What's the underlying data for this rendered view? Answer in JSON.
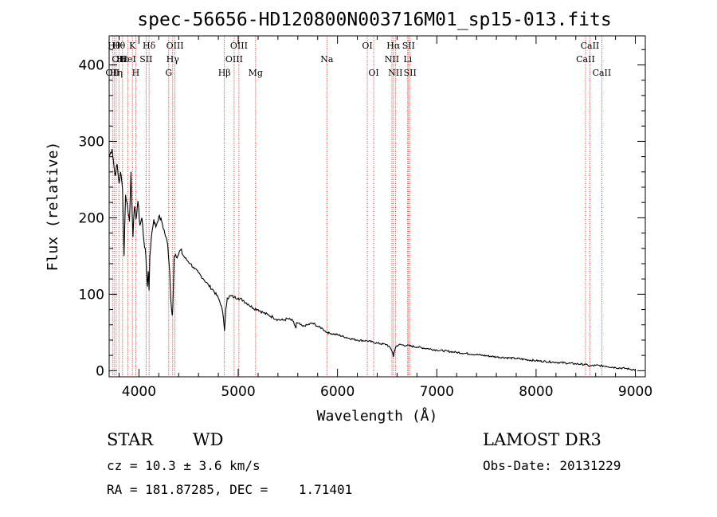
{
  "chart_data": {
    "type": "line",
    "title": "spec-56656-HD120800N003716M01_sp15-013.fits",
    "xlabel": "Wavelength (Å)",
    "ylabel": "Flux (relative)",
    "xlim": [
      3700,
      9100
    ],
    "ylim": [
      -8,
      438
    ],
    "x_ticks": [
      4000,
      5000,
      6000,
      7000,
      8000,
      9000
    ],
    "y_ticks": [
      0,
      100,
      200,
      300,
      400
    ],
    "series": [
      {
        "name": "flux",
        "x": [
          3700,
          3730,
          3760,
          3780,
          3800,
          3815,
          3835,
          3850,
          3865,
          3885,
          3905,
          3920,
          3940,
          3955,
          3970,
          3990,
          4010,
          4030,
          4050,
          4070,
          4085,
          4095,
          4102,
          4110,
          4125,
          4150,
          4170,
          4200,
          4230,
          4260,
          4290,
          4310,
          4320,
          4330,
          4336,
          4340,
          4345,
          4355,
          4370,
          4390,
          4420,
          4450,
          4480,
          4520,
          4560,
          4600,
          4650,
          4700,
          4750,
          4800,
          4830,
          4850,
          4860,
          4862,
          4868,
          4875,
          4890,
          4920,
          4960,
          5000,
          5050,
          5100,
          5150,
          5200,
          5250,
          5300,
          5350,
          5400,
          5450,
          5500,
          5550,
          5580,
          5582,
          5584,
          5600,
          5650,
          5700,
          5750,
          5800,
          5850,
          5890,
          5900,
          5920,
          6000,
          6100,
          6200,
          6300,
          6400,
          6500,
          6540,
          6555,
          6563,
          6570,
          6590,
          6620,
          6700,
          6800,
          6900,
          7000,
          7200,
          7400,
          7600,
          7800,
          8000,
          8200,
          8400,
          8500,
          8542,
          8600,
          8700,
          8800,
          8900,
          9000
        ],
        "values": [
          280,
          290,
          255,
          270,
          245,
          260,
          238,
          150,
          230,
          215,
          195,
          260,
          175,
          215,
          198,
          222,
          190,
          200,
          170,
          150,
          110,
          130,
          105,
          150,
          175,
          198,
          188,
          202,
          195,
          180,
          165,
          130,
          95,
          78,
          72,
          80,
          100,
          150,
          152,
          150,
          158,
          150,
          145,
          140,
          133,
          128,
          120,
          112,
          105,
          95,
          85,
          70,
          55,
          52,
          65,
          80,
          95,
          98,
          96,
          95,
          92,
          87,
          82,
          80,
          76,
          73,
          70,
          67,
          66,
          68,
          65,
          56,
          56,
          62,
          62,
          58,
          60,
          62,
          58,
          55,
          50,
          50,
          49,
          47,
          43,
          40,
          39,
          36,
          34,
          28,
          24,
          18,
          24,
          32,
          34,
          33,
          31,
          29,
          27,
          24,
          21,
          18,
          16,
          13,
          11,
          9,
          8,
          6,
          7,
          6,
          4,
          3,
          1
        ]
      }
    ],
    "lines": [
      {
        "wl": 3734,
        "labels": [
          {
            "row": 2,
            "text": "OII"
          }
        ]
      },
      {
        "wl": 3750,
        "labels": [
          {
            "row": 0,
            "text": "Hθ"
          }
        ]
      },
      {
        "wl": 3771,
        "labels": [
          {
            "row": 2,
            "text": "Hη"
          }
        ]
      },
      {
        "wl": 3798,
        "labels": [
          {
            "row": 0,
            "text": "Hθ"
          },
          {
            "row": 1,
            "text": "OII"
          }
        ]
      },
      {
        "wl": 3835,
        "labels": [
          {
            "row": 1,
            "text": "Hε"
          }
        ]
      },
      {
        "wl": 3889,
        "labels": [
          {
            "row": 1,
            "text": "HeI"
          }
        ]
      },
      {
        "wl": 3934,
        "labels": [
          {
            "row": 0,
            "text": "K"
          }
        ]
      },
      {
        "wl": 3968,
        "labels": [
          {
            "row": 2,
            "text": "H"
          }
        ]
      },
      {
        "wl": 4072,
        "labels": [
          {
            "row": 1,
            "text": "SII"
          }
        ]
      },
      {
        "wl": 4102,
        "labels": [
          {
            "row": 0,
            "text": "Hδ"
          }
        ]
      },
      {
        "wl": 4300,
        "labels": [
          {
            "row": 2,
            "text": "G"
          }
        ]
      },
      {
        "wl": 4340,
        "labels": [
          {
            "row": 1,
            "text": "Hγ"
          }
        ]
      },
      {
        "wl": 4363,
        "labels": [
          {
            "row": 0,
            "text": "OIII"
          }
        ]
      },
      {
        "wl": 4861,
        "labels": [
          {
            "row": 2,
            "text": "Hβ"
          }
        ]
      },
      {
        "wl": 4959,
        "labels": [
          {
            "row": 1,
            "text": "OIII"
          }
        ]
      },
      {
        "wl": 5007,
        "labels": [
          {
            "row": 0,
            "text": "OIII"
          }
        ]
      },
      {
        "wl": 5175,
        "labels": [
          {
            "row": 2,
            "text": "Mg"
          }
        ]
      },
      {
        "wl": 5893,
        "labels": [
          {
            "row": 1,
            "text": "Na"
          }
        ]
      },
      {
        "wl": 6300,
        "labels": [
          {
            "row": 0,
            "text": "OI"
          }
        ]
      },
      {
        "wl": 6364,
        "labels": [
          {
            "row": 2,
            "text": "OI"
          }
        ]
      },
      {
        "wl": 6548,
        "labels": [
          {
            "row": 1,
            "text": "NII"
          }
        ]
      },
      {
        "wl": 6563,
        "labels": [
          {
            "row": 0,
            "text": "Hα"
          }
        ]
      },
      {
        "wl": 6583,
        "labels": [
          {
            "row": 2,
            "text": "NII"
          }
        ]
      },
      {
        "wl": 6707,
        "labels": [
          {
            "row": 1,
            "text": "Li"
          }
        ]
      },
      {
        "wl": 6716,
        "labels": [
          {
            "row": 0,
            "text": "SII"
          }
        ]
      },
      {
        "wl": 6731,
        "labels": [
          {
            "row": 2,
            "text": "SII"
          }
        ]
      },
      {
        "wl": 8498,
        "labels": [
          {
            "row": 1,
            "text": "CaII"
          }
        ]
      },
      {
        "wl": 8542,
        "labels": [
          {
            "row": 0,
            "text": "CaII"
          }
        ]
      },
      {
        "wl": 8662,
        "labels": [
          {
            "row": 2,
            "text": "CaII"
          }
        ]
      }
    ],
    "line_color": "#000000",
    "marker_color": "#cc0000"
  },
  "info": {
    "class_label": "STAR",
    "subclass": "WD",
    "survey": "LAMOST DR3",
    "redshift": "cz = 10.3 ± 3.6 km/s",
    "obs_date": "Obs-Date: 20131229",
    "coords": "RA = 181.87285, DEC =    1.71401"
  }
}
